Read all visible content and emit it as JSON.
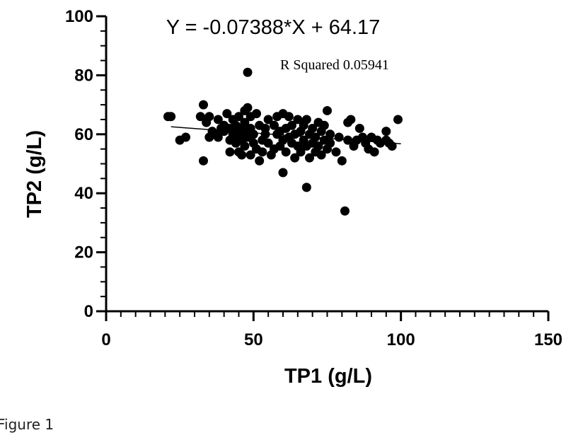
{
  "caption": "Figure 1",
  "chart_data": {
    "type": "scatter",
    "xlabel": "TP1 (g/L)",
    "ylabel": "TP2 (g/L)",
    "xlim": [
      0,
      150
    ],
    "ylim": [
      0,
      100
    ],
    "xticks": [
      0,
      50,
      100,
      150
    ],
    "yticks": [
      0,
      20,
      40,
      60,
      80,
      100
    ],
    "x_tick_labels": [
      "0",
      "50",
      "100",
      "150"
    ],
    "y_tick_labels": [
      "0",
      "20",
      "40",
      "60",
      "80",
      "100"
    ],
    "x_minor_step": 5,
    "y_minor_step": 5,
    "grid": false,
    "legend": "none",
    "annotations": {
      "equation": "Y = -0.07388*X + 64.17",
      "r_squared": "R Squared 0.05941"
    },
    "fit": {
      "slope": -0.07388,
      "intercept": 64.17,
      "x_range": [
        22,
        100
      ]
    },
    "points": [
      [
        21,
        66
      ],
      [
        22,
        66
      ],
      [
        25,
        58
      ],
      [
        27,
        59
      ],
      [
        32,
        66
      ],
      [
        33,
        70
      ],
      [
        33,
        51
      ],
      [
        34,
        64
      ],
      [
        35,
        59
      ],
      [
        35,
        66
      ],
      [
        36,
        61
      ],
      [
        37,
        60
      ],
      [
        38,
        59
      ],
      [
        38,
        65
      ],
      [
        39,
        62
      ],
      [
        40,
        63
      ],
      [
        40,
        61
      ],
      [
        41,
        67
      ],
      [
        42,
        58
      ],
      [
        42,
        54
      ],
      [
        42,
        62
      ],
      [
        43,
        60
      ],
      [
        43,
        65
      ],
      [
        44,
        63
      ],
      [
        44,
        59
      ],
      [
        44,
        57
      ],
      [
        45,
        61
      ],
      [
        45,
        54
      ],
      [
        45,
        66
      ],
      [
        46,
        62
      ],
      [
        46,
        60
      ],
      [
        46,
        58
      ],
      [
        46,
        53
      ],
      [
        47,
        64
      ],
      [
        47,
        68
      ],
      [
        47,
        56
      ],
      [
        48,
        61
      ],
      [
        48,
        59
      ],
      [
        48,
        69
      ],
      [
        48,
        81
      ],
      [
        49,
        66
      ],
      [
        49,
        62
      ],
      [
        49,
        53
      ],
      [
        50,
        60
      ],
      [
        50,
        57
      ],
      [
        51,
        67
      ],
      [
        51,
        55
      ],
      [
        52,
        63
      ],
      [
        52,
        51
      ],
      [
        53,
        58
      ],
      [
        53,
        54
      ],
      [
        54,
        60
      ],
      [
        54,
        62
      ],
      [
        55,
        57
      ],
      [
        55,
        65
      ],
      [
        56,
        53
      ],
      [
        57,
        63
      ],
      [
        57,
        55
      ],
      [
        58,
        60
      ],
      [
        58,
        66
      ],
      [
        59,
        56
      ],
      [
        59,
        61
      ],
      [
        60,
        58
      ],
      [
        60,
        47
      ],
      [
        60,
        67
      ],
      [
        61,
        62
      ],
      [
        61,
        54
      ],
      [
        62,
        59
      ],
      [
        62,
        66
      ],
      [
        63,
        57
      ],
      [
        63,
        63
      ],
      [
        64,
        52
      ],
      [
        64,
        60
      ],
      [
        65,
        56
      ],
      [
        65,
        65
      ],
      [
        66,
        61
      ],
      [
        66,
        54
      ],
      [
        67,
        58
      ],
      [
        67,
        63
      ],
      [
        68,
        42
      ],
      [
        68,
        56
      ],
      [
        68,
        65
      ],
      [
        69,
        60
      ],
      [
        69,
        52
      ],
      [
        70,
        57
      ],
      [
        70,
        62
      ],
      [
        71,
        54
      ],
      [
        71,
        59
      ],
      [
        72,
        64
      ],
      [
        72,
        56
      ],
      [
        73,
        61
      ],
      [
        73,
        53
      ],
      [
        74,
        58
      ],
      [
        74,
        63
      ],
      [
        75,
        55
      ],
      [
        75,
        68
      ],
      [
        76,
        60
      ],
      [
        76,
        57
      ],
      [
        78,
        54
      ],
      [
        79,
        59
      ],
      [
        80,
        51
      ],
      [
        81,
        34
      ],
      [
        82,
        58
      ],
      [
        82,
        64
      ],
      [
        83,
        65
      ],
      [
        84,
        56
      ],
      [
        85,
        58
      ],
      [
        86,
        62
      ],
      [
        87,
        59
      ],
      [
        88,
        57
      ],
      [
        89,
        55
      ],
      [
        90,
        59
      ],
      [
        91,
        54
      ],
      [
        92,
        58
      ],
      [
        93,
        57
      ],
      [
        95,
        61
      ],
      [
        95,
        58
      ],
      [
        96,
        57
      ],
      [
        97,
        56
      ],
      [
        99,
        65
      ]
    ]
  }
}
